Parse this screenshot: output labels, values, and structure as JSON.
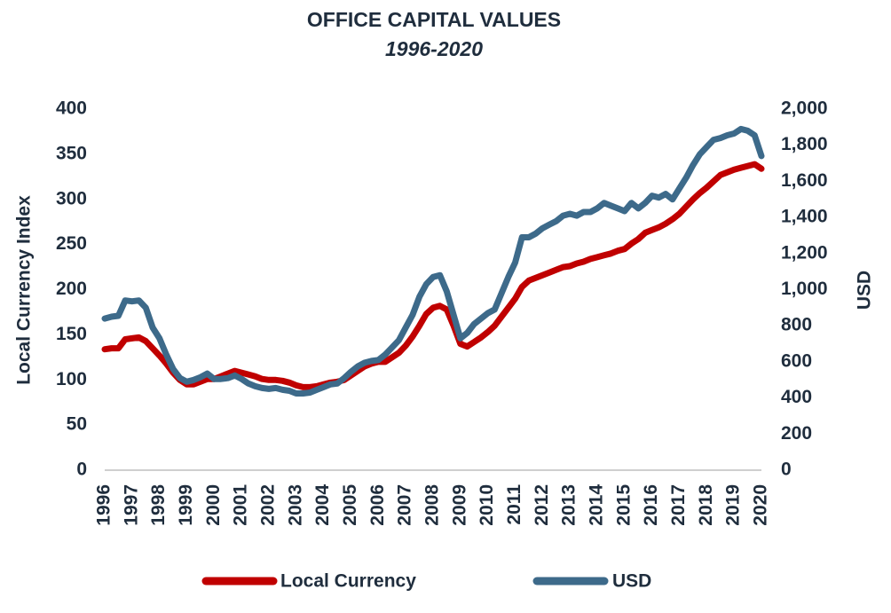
{
  "chart_data": {
    "type": "line",
    "title": "OFFICE CAPITAL VALUES",
    "subtitle": "1996-2020",
    "y_label": "Local Currency Index",
    "y2_label": "USD",
    "categories": [
      "1996",
      null,
      null,
      null,
      "1997",
      null,
      null,
      null,
      "1998",
      null,
      null,
      null,
      "1999",
      null,
      null,
      null,
      "2000",
      null,
      null,
      null,
      "2001",
      null,
      null,
      null,
      "2002",
      null,
      null,
      null,
      "2003",
      null,
      null,
      null,
      "2004",
      null,
      null,
      null,
      "2005",
      null,
      null,
      null,
      "2006",
      null,
      null,
      null,
      "2007",
      null,
      null,
      null,
      "2008",
      null,
      null,
      null,
      "2009",
      null,
      null,
      null,
      "2010",
      null,
      null,
      null,
      "2011",
      null,
      null,
      null,
      "2012",
      null,
      null,
      null,
      "2013",
      null,
      null,
      null,
      "2014",
      null,
      null,
      null,
      "2015",
      null,
      null,
      null,
      "2016",
      null,
      null,
      null,
      "2017",
      null,
      null,
      null,
      "2018",
      null,
      null,
      null,
      "2019",
      null,
      null,
      null,
      "2020"
    ],
    "series": [
      {
        "name": "Local Currency",
        "color": "#c00000",
        "axis": "y",
        "values": [
          134,
          135,
          135,
          145,
          146,
          147,
          143,
          135,
          127,
          118,
          108,
          100,
          95,
          95,
          98,
          101,
          101,
          104,
          107,
          110,
          108,
          106,
          104,
          101,
          100,
          100,
          99,
          97,
          94,
          92,
          92,
          93,
          95,
          97,
          98,
          100,
          105,
          110,
          115,
          118,
          120,
          120,
          125,
          130,
          138,
          148,
          160,
          173,
          180,
          182,
          178,
          160,
          140,
          137,
          142,
          147,
          153,
          160,
          170,
          180,
          190,
          203,
          210,
          213,
          216,
          219,
          222,
          225,
          226,
          229,
          231,
          234,
          236,
          238,
          240,
          243,
          245,
          251,
          256,
          263,
          266,
          269,
          273,
          278,
          284,
          292,
          300,
          307,
          313,
          320,
          327,
          330,
          333,
          335,
          337,
          339,
          334
        ]
      },
      {
        "name": "USD",
        "color": "#3d6a8a",
        "axis": "y2",
        "values": [
          840,
          850,
          855,
          940,
          935,
          940,
          900,
          790,
          730,
          640,
          560,
          510,
          490,
          500,
          515,
          535,
          505,
          505,
          510,
          525,
          505,
          480,
          465,
          455,
          450,
          455,
          445,
          440,
          425,
          425,
          430,
          445,
          460,
          475,
          480,
          510,
          545,
          575,
          595,
          605,
          610,
          640,
          680,
          720,
          790,
          860,
          960,
          1030,
          1070,
          1080,
          990,
          860,
          730,
          760,
          810,
          840,
          870,
          890,
          980,
          1070,
          1150,
          1290,
          1290,
          1310,
          1340,
          1360,
          1380,
          1410,
          1420,
          1410,
          1430,
          1430,
          1450,
          1480,
          1465,
          1450,
          1435,
          1480,
          1450,
          1480,
          1520,
          1510,
          1530,
          1500,
          1560,
          1620,
          1690,
          1750,
          1790,
          1830,
          1840,
          1855,
          1865,
          1890,
          1880,
          1855,
          1740
        ]
      }
    ],
    "ylim": [
      0,
      400
    ],
    "yticks": [
      0,
      50,
      100,
      150,
      200,
      250,
      300,
      350,
      400
    ],
    "y2lim": [
      0,
      2000
    ],
    "y2ticks": [
      0,
      {
        "value": 200,
        "label": "200"
      },
      {
        "value": 400,
        "label": "400"
      },
      {
        "value": 600,
        "label": "600"
      },
      {
        "value": 800,
        "label": "800"
      },
      {
        "value": 1000,
        "label": "1,000"
      },
      {
        "value": 1200,
        "label": "1,200"
      },
      {
        "value": 1400,
        "label": "1,400"
      },
      {
        "value": 1600,
        "label": "1,600"
      },
      {
        "value": 1800,
        "label": "1,800"
      },
      {
        "value": 2000,
        "label": "2,000"
      }
    ],
    "grid": false,
    "legend": "bottom"
  }
}
